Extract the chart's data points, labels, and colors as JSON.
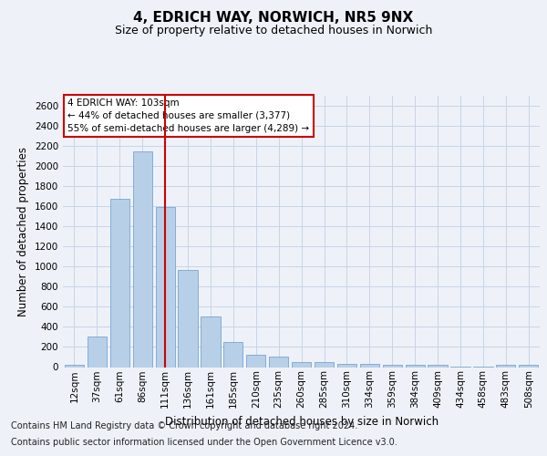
{
  "title": "4, EDRICH WAY, NORWICH, NR5 9NX",
  "subtitle": "Size of property relative to detached houses in Norwich",
  "xlabel": "Distribution of detached houses by size in Norwich",
  "ylabel": "Number of detached properties",
  "categories": [
    "12sqm",
    "37sqm",
    "61sqm",
    "86sqm",
    "111sqm",
    "136sqm",
    "161sqm",
    "185sqm",
    "210sqm",
    "235sqm",
    "260sqm",
    "285sqm",
    "310sqm",
    "334sqm",
    "359sqm",
    "384sqm",
    "409sqm",
    "434sqm",
    "458sqm",
    "483sqm",
    "508sqm"
  ],
  "values": [
    25,
    300,
    1670,
    2150,
    1595,
    965,
    500,
    250,
    120,
    100,
    50,
    50,
    35,
    30,
    20,
    20,
    20,
    5,
    5,
    25,
    25
  ],
  "bar_color": "#b8cfe8",
  "bar_edgecolor": "#6699cc",
  "vline_x_index": 4,
  "vline_color": "#cc0000",
  "annotation_text": "4 EDRICH WAY: 103sqm\n← 44% of detached houses are smaller (3,377)\n55% of semi-detached houses are larger (4,289) →",
  "annotation_box_edgecolor": "#cc0000",
  "annotation_box_facecolor": "#ffffff",
  "ylim": [
    0,
    2700
  ],
  "yticks": [
    0,
    200,
    400,
    600,
    800,
    1000,
    1200,
    1400,
    1600,
    1800,
    2000,
    2200,
    2400,
    2600
  ],
  "grid_color": "#c8d4e8",
  "background_color": "#eef2f8",
  "footer_line1": "Contains HM Land Registry data © Crown copyright and database right 2024.",
  "footer_line2": "Contains public sector information licensed under the Open Government Licence v3.0.",
  "title_fontsize": 11,
  "subtitle_fontsize": 9,
  "axis_label_fontsize": 8.5,
  "tick_fontsize": 7.5,
  "footer_fontsize": 7
}
